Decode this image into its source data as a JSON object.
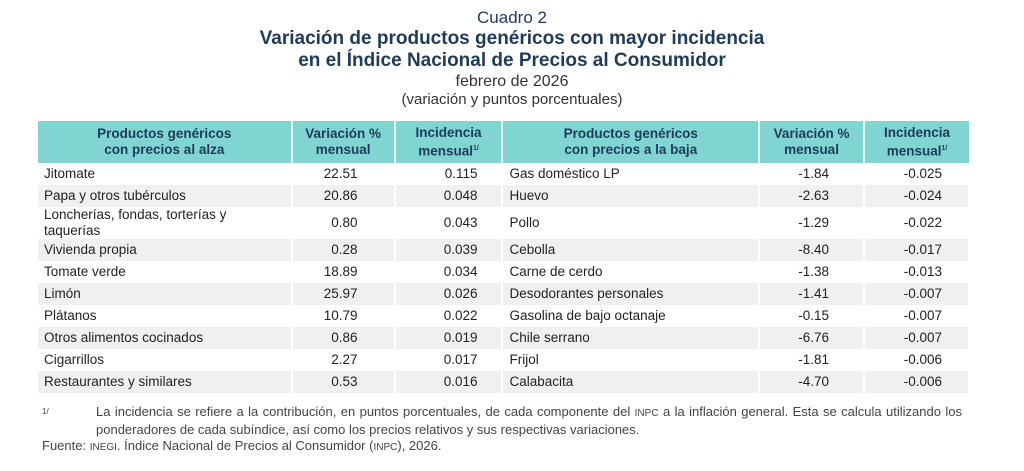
{
  "title": {
    "label": "Cuadro 2",
    "main_line1": "Variación de productos genéricos con mayor incidencia",
    "main_line2": "en el Índice Nacional de Precios al Consumidor",
    "period": "febrero de 2026",
    "units": "(variación y puntos porcentuales)"
  },
  "headers": {
    "up_products_1": "Productos genéricos",
    "up_products_2": "con precios al alza",
    "var_1": "Variación %",
    "var_2": "mensual",
    "inc_1": "Incidencia",
    "inc_2": "mensual",
    "inc_sup": "1/",
    "down_products_1": "Productos genéricos",
    "down_products_2": "con precios a la baja"
  },
  "rows": [
    {
      "up": "Jitomate",
      "up_var": "22.51",
      "up_inc": "0.115",
      "down": "Gas doméstico LP",
      "down_var": "-1.84",
      "down_inc": "-0.025"
    },
    {
      "up": "Papa y otros tubérculos",
      "up_var": "20.86",
      "up_inc": "0.048",
      "down": "Huevo",
      "down_var": "-2.63",
      "down_inc": "-0.024"
    },
    {
      "up": "Loncherías, fondas, torterías y taquerías",
      "up_var": "0.80",
      "up_inc": "0.043",
      "down": "Pollo",
      "down_var": "-1.29",
      "down_inc": "-0.022"
    },
    {
      "up": "Vivienda propia",
      "up_var": "0.28",
      "up_inc": "0.039",
      "down": "Cebolla",
      "down_var": "-8.40",
      "down_inc": "-0.017"
    },
    {
      "up": "Tomate verde",
      "up_var": "18.89",
      "up_inc": "0.034",
      "down": "Carne de cerdo",
      "down_var": "-1.38",
      "down_inc": "-0.013"
    },
    {
      "up": "Limón",
      "up_var": "25.97",
      "up_inc": "0.026",
      "down": "Desodorantes personales",
      "down_var": "-1.41",
      "down_inc": "-0.007"
    },
    {
      "up": "Plátanos",
      "up_var": "10.79",
      "up_inc": "0.022",
      "down": "Gasolina de bajo octanaje",
      "down_var": "-0.15",
      "down_inc": "-0.007"
    },
    {
      "up": "Otros alimentos cocinados",
      "up_var": "0.86",
      "up_inc": "0.019",
      "down": "Chile serrano",
      "down_var": "-6.76",
      "down_inc": "-0.007"
    },
    {
      "up": "Cigarrillos",
      "up_var": "2.27",
      "up_inc": "0.017",
      "down": "Frijol",
      "down_var": "-1.81",
      "down_inc": "-0.006"
    },
    {
      "up": "Restaurantes y similares",
      "up_var": "0.53",
      "up_inc": "0.016",
      "down": "Calabacita",
      "down_var": "-4.70",
      "down_inc": "-0.006"
    }
  ],
  "notes": {
    "footnote_mark": "1/",
    "footnote_a": "La incidencia se refiere a la contribución, en puntos porcentuales, de cada componente del ",
    "footnote_inpc": "INPC",
    "footnote_b": " a la inflación general. Esta se calcula utilizando los ponderadores de cada subíndice, así como los precios relativos y sus respectivas variaciones.",
    "source_a": "Fuente: ",
    "source_inegi": "INEGI",
    "source_b": ". Índice Nacional de Precios al Consumidor (",
    "source_inpc": "INPC",
    "source_c": "), 2026."
  }
}
